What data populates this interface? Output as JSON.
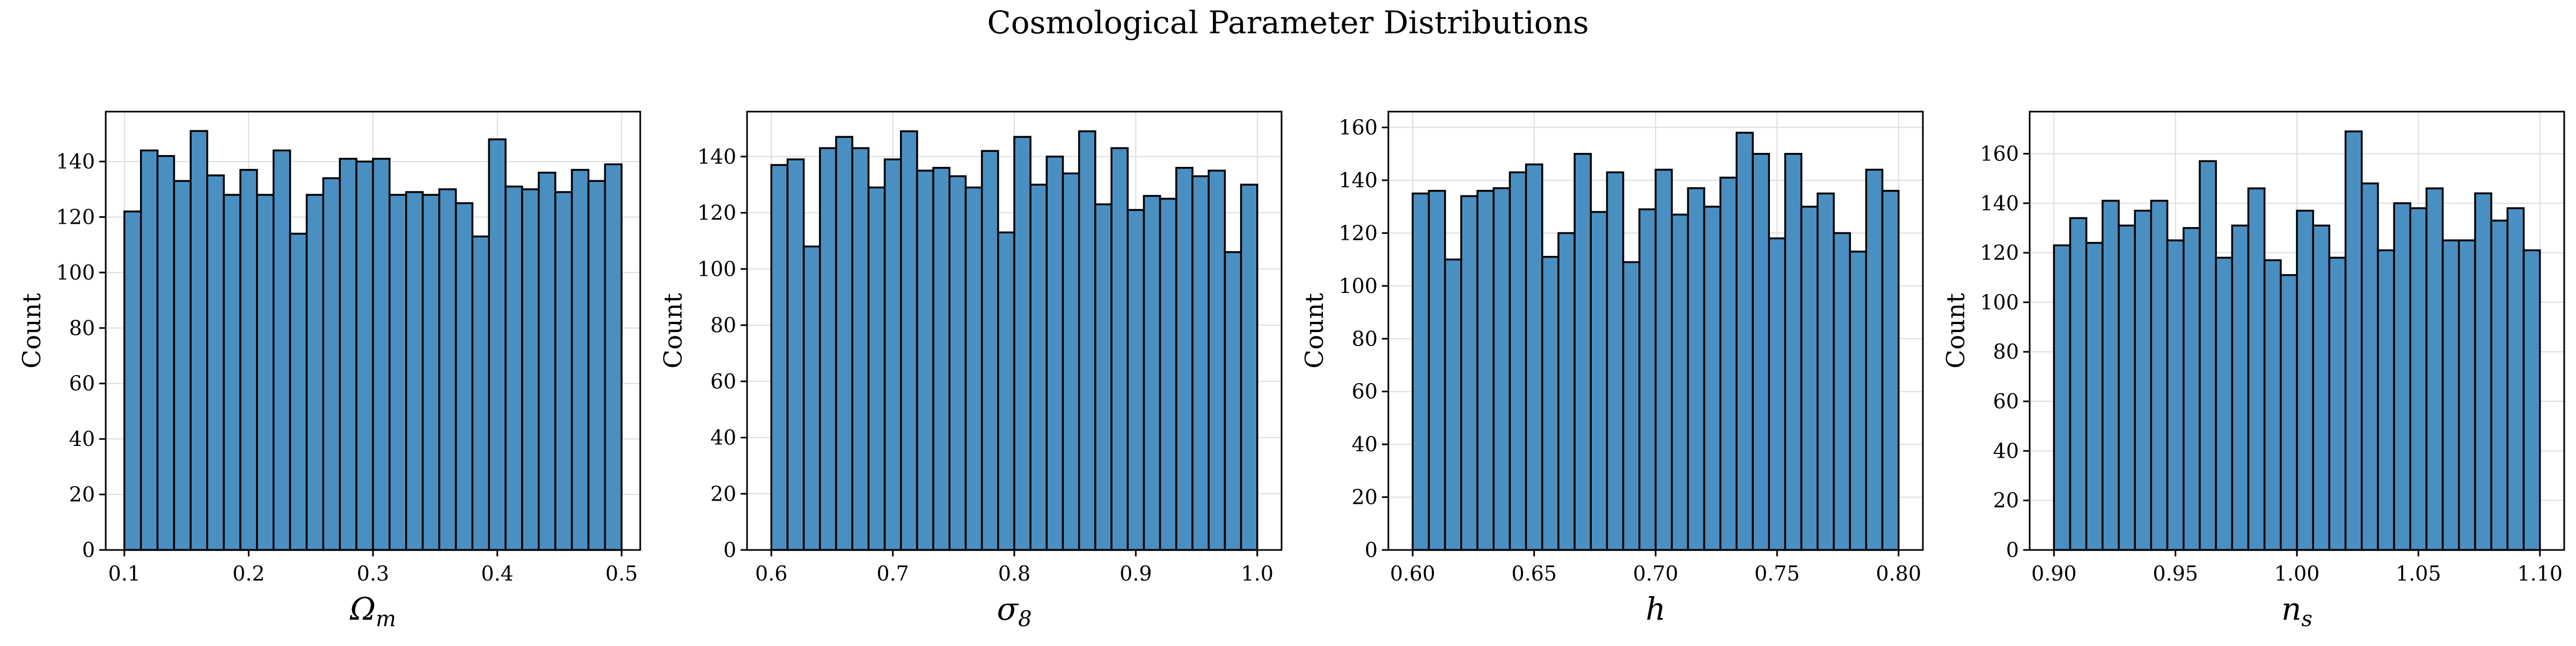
{
  "figure": {
    "title": "Cosmological Parameter Distributions"
  },
  "style": {
    "bar_fill": "#4a8fc2",
    "bar_edge": "#000000",
    "grid_color": "#dddddd"
  },
  "chart_data": [
    {
      "type": "bar",
      "xlabel": "Ω",
      "xlabel_sub": "m",
      "ylabel": "Count",
      "xlim": [
        0.085,
        0.515
      ],
      "ylim": [
        0,
        158
      ],
      "xticks": [
        0.1,
        0.2,
        0.3,
        0.4,
        0.5
      ],
      "xtick_labels": [
        "0.1",
        "0.2",
        "0.3",
        "0.4",
        "0.5"
      ],
      "yticks": [
        0,
        20,
        40,
        60,
        80,
        100,
        120,
        140
      ],
      "ytick_labels": [
        "0",
        "20",
        "40",
        "60",
        "80",
        "100",
        "120",
        "140"
      ],
      "bin_range": [
        0.1,
        0.5
      ],
      "grid": true,
      "values": [
        122,
        144,
        142,
        133,
        151,
        135,
        128,
        137,
        128,
        144,
        114,
        128,
        134,
        141,
        140,
        141,
        128,
        129,
        128,
        130,
        125,
        113,
        148,
        131,
        130,
        136,
        129,
        137,
        133,
        139
      ]
    },
    {
      "type": "bar",
      "xlabel": "σ",
      "xlabel_sub": "8",
      "ylabel": "Count",
      "xlim": [
        0.58,
        1.02
      ],
      "ylim": [
        0,
        156
      ],
      "xticks": [
        0.6,
        0.7,
        0.8,
        0.9,
        1.0
      ],
      "xtick_labels": [
        "0.6",
        "0.7",
        "0.8",
        "0.9",
        "1.0"
      ],
      "yticks": [
        0,
        20,
        40,
        60,
        80,
        100,
        120,
        140
      ],
      "ytick_labels": [
        "0",
        "20",
        "40",
        "60",
        "80",
        "100",
        "120",
        "140"
      ],
      "bin_range": [
        0.6,
        1.0
      ],
      "grid": true,
      "values": [
        137,
        139,
        108,
        143,
        147,
        143,
        129,
        139,
        149,
        135,
        136,
        133,
        129,
        142,
        113,
        147,
        130,
        140,
        134,
        149,
        123,
        143,
        121,
        126,
        125,
        136,
        133,
        135,
        106,
        130
      ]
    },
    {
      "type": "bar",
      "xlabel": "h",
      "xlabel_sub": "",
      "ylabel": "Count",
      "xlim": [
        0.59,
        0.81
      ],
      "ylim": [
        0,
        166
      ],
      "xticks": [
        0.6,
        0.65,
        0.7,
        0.75,
        0.8
      ],
      "xtick_labels": [
        "0.60",
        "0.65",
        "0.70",
        "0.75",
        "0.80"
      ],
      "yticks": [
        0,
        20,
        40,
        60,
        80,
        100,
        120,
        140,
        160
      ],
      "ytick_labels": [
        "0",
        "20",
        "40",
        "60",
        "80",
        "100",
        "120",
        "140",
        "160"
      ],
      "bin_range": [
        0.6,
        0.8
      ],
      "grid": true,
      "values": [
        135,
        136,
        110,
        134,
        136,
        137,
        143,
        146,
        111,
        120,
        150,
        128,
        143,
        109,
        129,
        144,
        127,
        137,
        130,
        141,
        158,
        150,
        118,
        150,
        130,
        135,
        120,
        113,
        144,
        136
      ]
    },
    {
      "type": "bar",
      "xlabel": "n",
      "xlabel_sub": "s",
      "ylabel": "Count",
      "xlim": [
        0.89,
        1.11
      ],
      "ylim": [
        0,
        177
      ],
      "xticks": [
        0.9,
        0.95,
        1.0,
        1.05,
        1.1
      ],
      "xtick_labels": [
        "0.90",
        "0.95",
        "1.00",
        "1.05",
        "1.10"
      ],
      "yticks": [
        0,
        20,
        40,
        60,
        80,
        100,
        120,
        140,
        160
      ],
      "ytick_labels": [
        "0",
        "20",
        "40",
        "60",
        "80",
        "100",
        "120",
        "140",
        "160"
      ],
      "bin_range": [
        0.9,
        1.1
      ],
      "grid": true,
      "values": [
        123,
        134,
        124,
        141,
        131,
        137,
        141,
        125,
        130,
        157,
        118,
        131,
        146,
        117,
        111,
        137,
        131,
        118,
        169,
        148,
        121,
        140,
        138,
        146,
        125,
        125,
        144,
        133,
        138,
        121
      ]
    }
  ]
}
